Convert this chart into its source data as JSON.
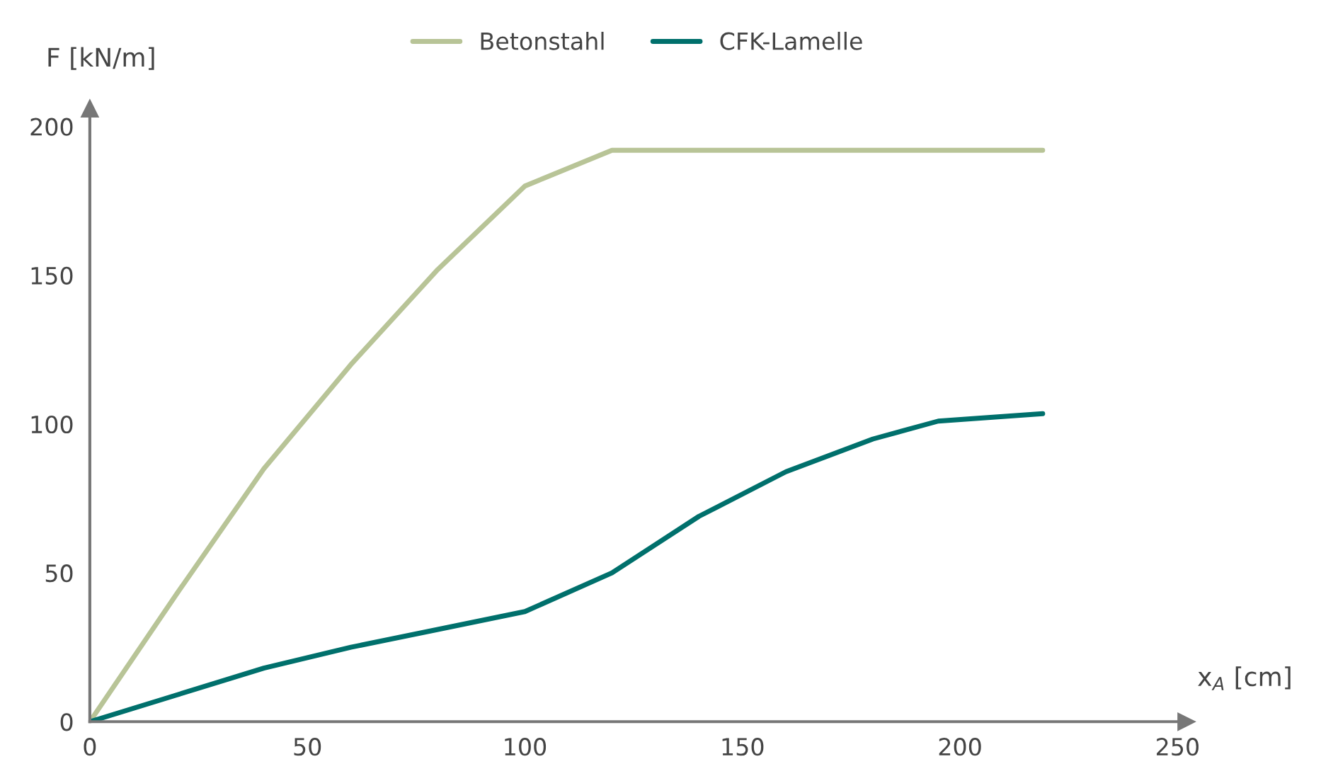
{
  "chart_data": {
    "type": "line",
    "xlabel": "x$_{A}$ [cm]",
    "ylabel": "F [kN/m]",
    "xlim": [
      0,
      252
    ],
    "xticks": [
      0,
      50,
      100,
      150,
      200,
      250
    ],
    "ylim": [
      0,
      206
    ],
    "yticks": [
      0,
      50,
      100,
      150,
      200
    ],
    "grid": false,
    "legend": "top",
    "marker": "none",
    "line_style": "solid",
    "series": [
      {
        "name": "Betonstahl",
        "color": "#b8c497",
        "x": [
          0,
          20,
          40,
          60,
          80,
          100,
          120,
          219
        ],
        "values": [
          0,
          43,
          85,
          120,
          152,
          180,
          192,
          192
        ]
      },
      {
        "name": "CFK-Lamelle",
        "color": "#00706c",
        "x": [
          0,
          20,
          40,
          60,
          80,
          100,
          120,
          140,
          160,
          180,
          195,
          219
        ],
        "values": [
          0,
          9,
          18,
          25,
          31,
          37,
          50,
          69,
          84,
          95,
          101,
          103.5
        ]
      }
    ]
  }
}
